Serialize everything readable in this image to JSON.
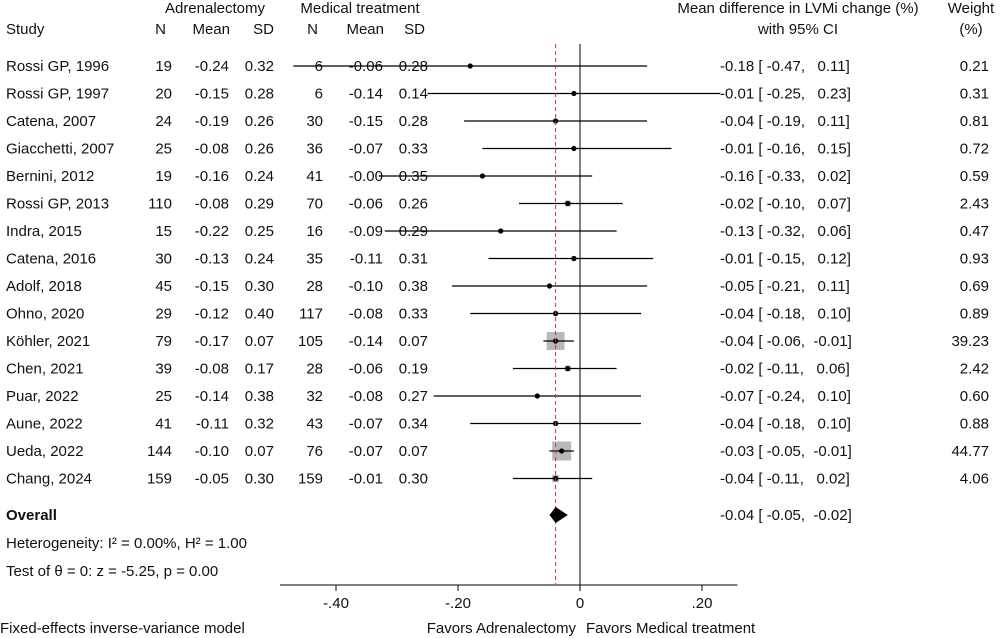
{
  "chart_data": {
    "type": "forest",
    "headers": {
      "study": "Study",
      "group1": "Adrenalectomy",
      "group2": "Medical treatment",
      "n": "N",
      "mean": "Mean",
      "sd": "SD",
      "effect_line1": "Mean difference in LVMi change (%)",
      "effect_line2": "with 95% CI",
      "weight_line1": "Weight",
      "weight_line2": "(%)"
    },
    "studies": [
      {
        "study": "Rossi GP, 1996",
        "n1": "19",
        "mean1": "-0.24",
        "sd1": "0.32",
        "n2": "6",
        "mean2": "-0.06",
        "sd2": "0.28",
        "md": -0.18,
        "lo": -0.47,
        "hi": 0.11,
        "ci_text": "-0.18 [ -0.47,   0.11]",
        "weight": "0.21"
      },
      {
        "study": "Rossi GP, 1997",
        "n1": "20",
        "mean1": "-0.15",
        "sd1": "0.28",
        "n2": "6",
        "mean2": "-0.14",
        "sd2": "0.14",
        "md": -0.01,
        "lo": -0.25,
        "hi": 0.23,
        "ci_text": "-0.01 [ -0.25,   0.23]",
        "weight": "0.31"
      },
      {
        "study": "Catena, 2007",
        "n1": "24",
        "mean1": "-0.19",
        "sd1": "0.26",
        "n2": "30",
        "mean2": "-0.15",
        "sd2": "0.28",
        "md": -0.04,
        "lo": -0.19,
        "hi": 0.11,
        "ci_text": "-0.04 [ -0.19,   0.11]",
        "weight": "0.81"
      },
      {
        "study": "Giacchetti, 2007",
        "n1": "25",
        "mean1": "-0.08",
        "sd1": "0.26",
        "n2": "36",
        "mean2": "-0.07",
        "sd2": "0.33",
        "md": -0.01,
        "lo": -0.16,
        "hi": 0.15,
        "ci_text": "-0.01 [ -0.16,   0.15]",
        "weight": "0.72"
      },
      {
        "study": "Bernini, 2012",
        "n1": "19",
        "mean1": "-0.16",
        "sd1": "0.24",
        "n2": "41",
        "mean2": "-0.00",
        "sd2": "0.35",
        "md": -0.16,
        "lo": -0.33,
        "hi": 0.02,
        "ci_text": "-0.16 [ -0.33,   0.02]",
        "weight": "0.59"
      },
      {
        "study": "Rossi GP, 2013",
        "n1": "110",
        "mean1": "-0.08",
        "sd1": "0.29",
        "n2": "70",
        "mean2": "-0.06",
        "sd2": "0.26",
        "md": -0.02,
        "lo": -0.1,
        "hi": 0.07,
        "ci_text": "-0.02 [ -0.10,   0.07]",
        "weight": "2.43"
      },
      {
        "study": "Indra, 2015",
        "n1": "15",
        "mean1": "-0.22",
        "sd1": "0.25",
        "n2": "16",
        "mean2": "-0.09",
        "sd2": "0.29",
        "md": -0.13,
        "lo": -0.32,
        "hi": 0.06,
        "ci_text": "-0.13 [ -0.32,   0.06]",
        "weight": "0.47"
      },
      {
        "study": "Catena, 2016",
        "n1": "30",
        "mean1": "-0.13",
        "sd1": "0.24",
        "n2": "35",
        "mean2": "-0.11",
        "sd2": "0.31",
        "md": -0.01,
        "lo": -0.15,
        "hi": 0.12,
        "ci_text": "-0.01 [ -0.15,   0.12]",
        "weight": "0.93"
      },
      {
        "study": "Adolf, 2018",
        "n1": "45",
        "mean1": "-0.15",
        "sd1": "0.30",
        "n2": "28",
        "mean2": "-0.10",
        "sd2": "0.38",
        "md": -0.05,
        "lo": -0.21,
        "hi": 0.11,
        "ci_text": "-0.05 [ -0.21,   0.11]",
        "weight": "0.69"
      },
      {
        "study": "Ohno, 2020",
        "n1": "29",
        "mean1": "-0.12",
        "sd1": "0.40",
        "n2": "117",
        "mean2": "-0.08",
        "sd2": "0.33",
        "md": -0.04,
        "lo": -0.18,
        "hi": 0.1,
        "ci_text": "-0.04 [ -0.18,   0.10]",
        "weight": "0.89"
      },
      {
        "study": "Köhler, 2021",
        "n1": "79",
        "mean1": "-0.17",
        "sd1": "0.07",
        "n2": "105",
        "mean2": "-0.14",
        "sd2": "0.07",
        "md": -0.04,
        "lo": -0.06,
        "hi": -0.01,
        "ci_text": "-0.04 [ -0.06,  -0.01]",
        "weight": "39.23"
      },
      {
        "study": "Chen, 2021",
        "n1": "39",
        "mean1": "-0.08",
        "sd1": "0.17",
        "n2": "28",
        "mean2": "-0.06",
        "sd2": "0.19",
        "md": -0.02,
        "lo": -0.11,
        "hi": 0.06,
        "ci_text": "-0.02 [ -0.11,   0.06]",
        "weight": "2.42"
      },
      {
        "study": "Puar, 2022",
        "n1": "25",
        "mean1": "-0.14",
        "sd1": "0.38",
        "n2": "32",
        "mean2": "-0.08",
        "sd2": "0.27",
        "md": -0.07,
        "lo": -0.24,
        "hi": 0.1,
        "ci_text": "-0.07 [ -0.24,   0.10]",
        "weight": "0.60"
      },
      {
        "study": "Aune, 2022",
        "n1": "41",
        "mean1": "-0.11",
        "sd1": "0.32",
        "n2": "43",
        "mean2": "-0.07",
        "sd2": "0.34",
        "md": -0.04,
        "lo": -0.18,
        "hi": 0.1,
        "ci_text": "-0.04 [ -0.18,   0.10]",
        "weight": "0.88"
      },
      {
        "study": "Ueda, 2022",
        "n1": "144",
        "mean1": "-0.10",
        "sd1": "0.07",
        "n2": "76",
        "mean2": "-0.07",
        "sd2": "0.07",
        "md": -0.03,
        "lo": -0.05,
        "hi": -0.01,
        "ci_text": "-0.03 [ -0.05,  -0.01]",
        "weight": "44.77"
      },
      {
        "study": "Chang, 2024",
        "n1": "159",
        "mean1": "-0.05",
        "sd1": "0.30",
        "n2": "159",
        "mean2": "-0.01",
        "sd2": "0.30",
        "md": -0.04,
        "lo": -0.11,
        "hi": 0.02,
        "ci_text": "-0.04 [ -0.11,   0.02]",
        "weight": "4.06"
      }
    ],
    "overall": {
      "label": "Overall",
      "md": -0.04,
      "lo": -0.05,
      "hi": -0.02,
      "ci_text": "-0.04 [ -0.05,  -0.02]"
    },
    "heterogeneity": "Heterogeneity: I² = 0.00%, H² = 1.00",
    "test": "Test of θ = 0: z = -5.25, p = 0.00",
    "model": "Fixed-effects inverse-variance model",
    "x_ticks": [
      -0.4,
      -0.2,
      0,
      0.2
    ],
    "x_tick_labels": [
      "-.40",
      "-.20",
      "0",
      ".20"
    ],
    "xlim": [
      -0.5,
      0.25
    ],
    "favors_left": "Favors Adrenalectomy",
    "favors_right": "Favors Medical treatment",
    "colors": {
      "square": "#b8b8b8",
      "marker": "#000000",
      "overall_line": "#d0324a"
    }
  }
}
